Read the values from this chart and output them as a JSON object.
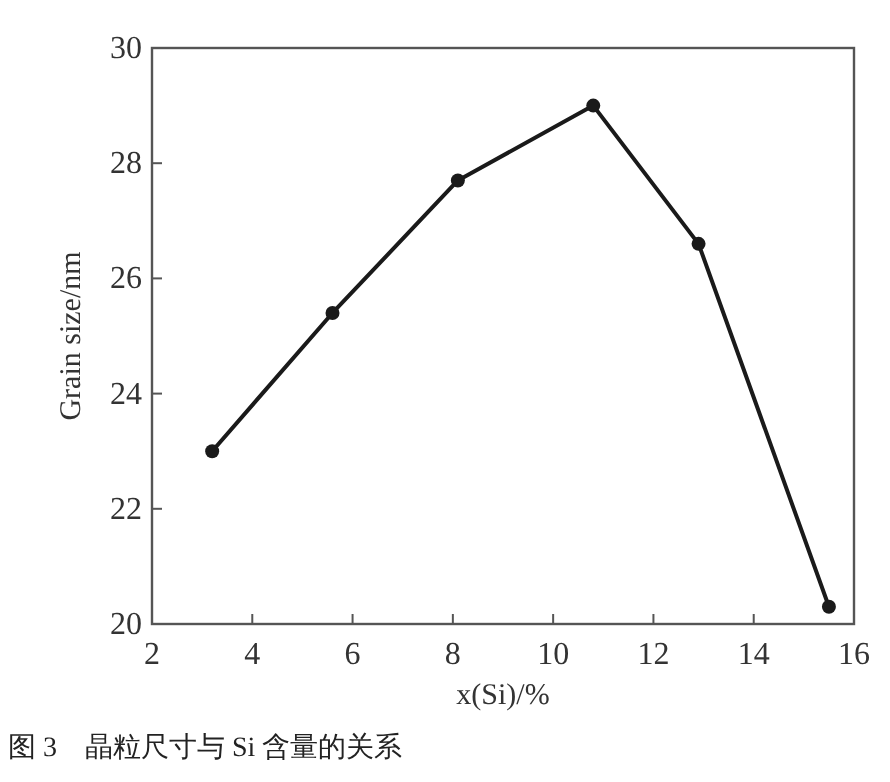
{
  "chart_data": {
    "type": "line",
    "xlabel": "x(Si)/%",
    "ylabel": "Grain size/nm",
    "annotations": [
      "图 3　晶粒尺寸与 Si 含量的关系"
    ],
    "x": [
      3.2,
      5.6,
      8.1,
      10.8,
      12.9,
      15.5
    ],
    "series": [
      {
        "color": "#1a1a1a",
        "values": [
          23.0,
          25.4,
          27.7,
          29.0,
          26.6,
          20.3
        ]
      }
    ],
    "xlim": [
      2,
      16
    ],
    "ylim": [
      20,
      30
    ],
    "xticks": [
      2,
      4,
      6,
      8,
      10,
      12,
      14,
      16
    ],
    "yticks": [
      20,
      22,
      24,
      26,
      28,
      30
    ],
    "marker": "circle",
    "line_style": "solid",
    "grid": false
  }
}
